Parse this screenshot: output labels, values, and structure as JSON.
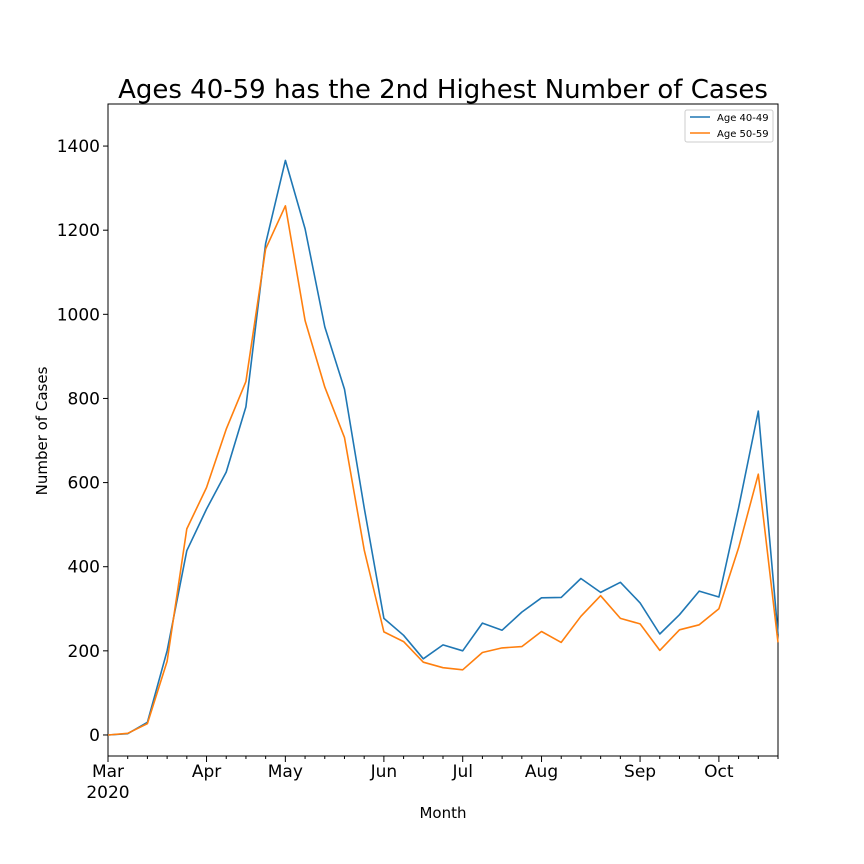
{
  "chart_data": {
    "type": "line",
    "title": "Ages 40-59 has the 2nd Highest Number of Cases",
    "xlabel": "Month",
    "ylabel": "Number of Cases",
    "ylim": [
      -50,
      1500
    ],
    "yticks": [
      0,
      200,
      400,
      600,
      800,
      1000,
      1200,
      1400
    ],
    "xticks": [
      {
        "label": "Mar",
        "sublabel": "2020",
        "week": 0
      },
      {
        "label": "Apr",
        "sublabel": "",
        "week": 5
      },
      {
        "label": "May",
        "sublabel": "",
        "week": 9
      },
      {
        "label": "Jun",
        "sublabel": "",
        "week": 14
      },
      {
        "label": "Jul",
        "sublabel": "",
        "week": 18
      },
      {
        "label": "Aug",
        "sublabel": "",
        "week": 22
      },
      {
        "label": "Sep",
        "sublabel": "",
        "week": 27
      },
      {
        "label": "Oct",
        "sublabel": "",
        "week": 31
      }
    ],
    "x": [
      0,
      1,
      2,
      3,
      4,
      5,
      6,
      7,
      8,
      9,
      10,
      11,
      12,
      13,
      14,
      15,
      16,
      17,
      18,
      19,
      20,
      21,
      22,
      23,
      24,
      25,
      26,
      27,
      28,
      29,
      30,
      31,
      32,
      33,
      34
    ],
    "xlim": [
      0,
      34
    ],
    "series": [
      {
        "name": "Age 40-49",
        "color": "#1f77b4",
        "values": [
          0,
          3,
          30,
          200,
          438,
          537,
          625,
          780,
          1168,
          1366,
          1203,
          970,
          822,
          540,
          277,
          237,
          181,
          214,
          200,
          266,
          249,
          292,
          326,
          327,
          372,
          339,
          363,
          314,
          240,
          286,
          342,
          328,
          540,
          770,
          240
        ]
      },
      {
        "name": "Age 50-59",
        "color": "#ff7f0e",
        "values": [
          0,
          4,
          27,
          175,
          490,
          588,
          727,
          840,
          1155,
          1258,
          985,
          827,
          707,
          440,
          245,
          222,
          173,
          160,
          155,
          196,
          207,
          210,
          246,
          220,
          282,
          331,
          277,
          264,
          201,
          250,
          262,
          300,
          445,
          620,
          220
        ]
      }
    ],
    "legend": "top-right",
    "grid": false
  }
}
